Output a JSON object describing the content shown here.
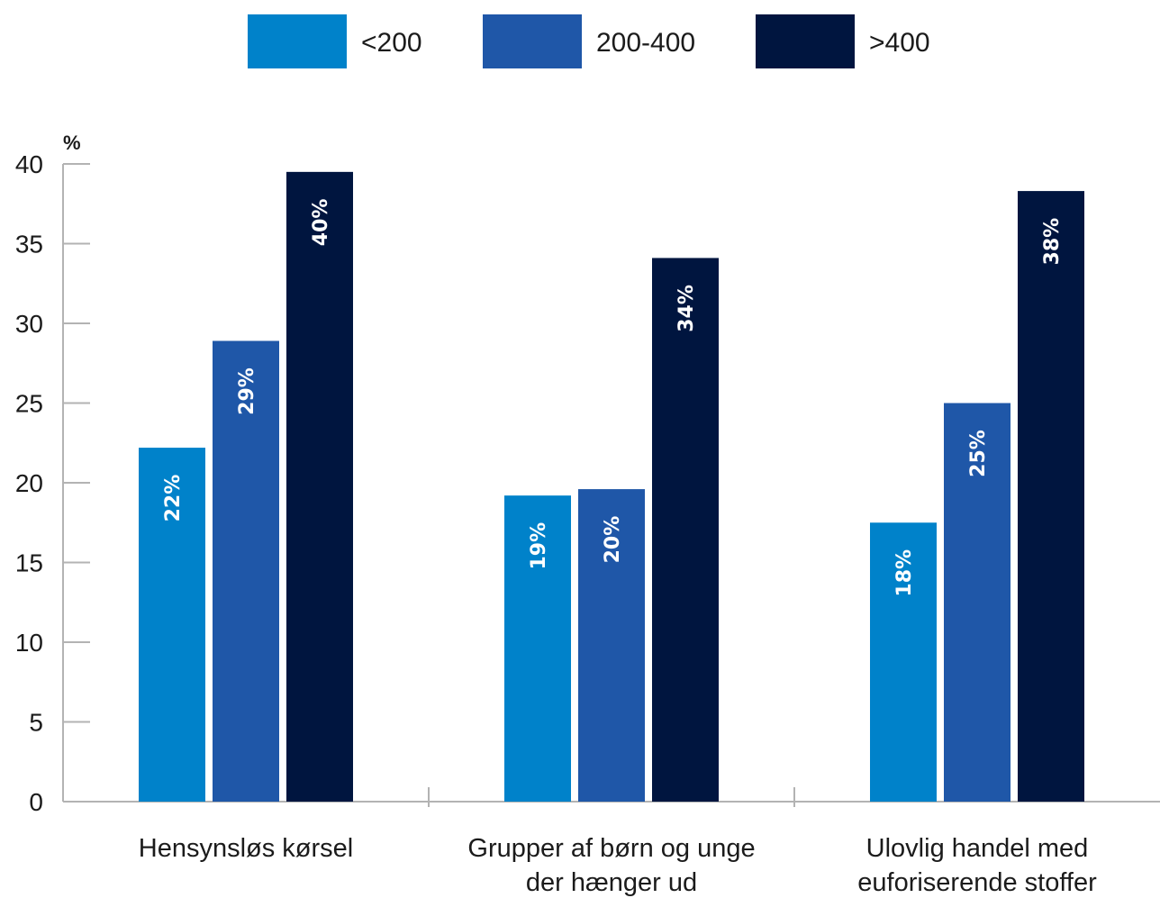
{
  "chart_data": {
    "type": "bar",
    "ylabel": "%",
    "ylim": [
      0,
      40
    ],
    "yticks": [
      0,
      5,
      10,
      15,
      20,
      25,
      30,
      35,
      40
    ],
    "categories": [
      [
        "Hensynsløs kørsel"
      ],
      [
        "Grupper af børn og unge",
        "der hænger ud"
      ],
      [
        "Ulovlig handel med",
        "euforiserende stoffer"
      ]
    ],
    "series": [
      {
        "name": "<200",
        "color": "#0082ca",
        "values": [
          22.2,
          19.2,
          17.5
        ],
        "labels": [
          "22%",
          "19%",
          "18%"
        ]
      },
      {
        "name": "200-400",
        "color": "#1f57a8",
        "values": [
          28.9,
          19.6,
          25.0
        ],
        "labels": [
          "29%",
          "20%",
          "25%"
        ]
      },
      {
        "name": ">400",
        "color": "#00153f",
        "values": [
          39.5,
          34.1,
          38.3
        ],
        "labels": [
          "40%",
          "34%",
          "38%"
        ]
      }
    ],
    "legend_position": "top-center",
    "grid": false
  }
}
